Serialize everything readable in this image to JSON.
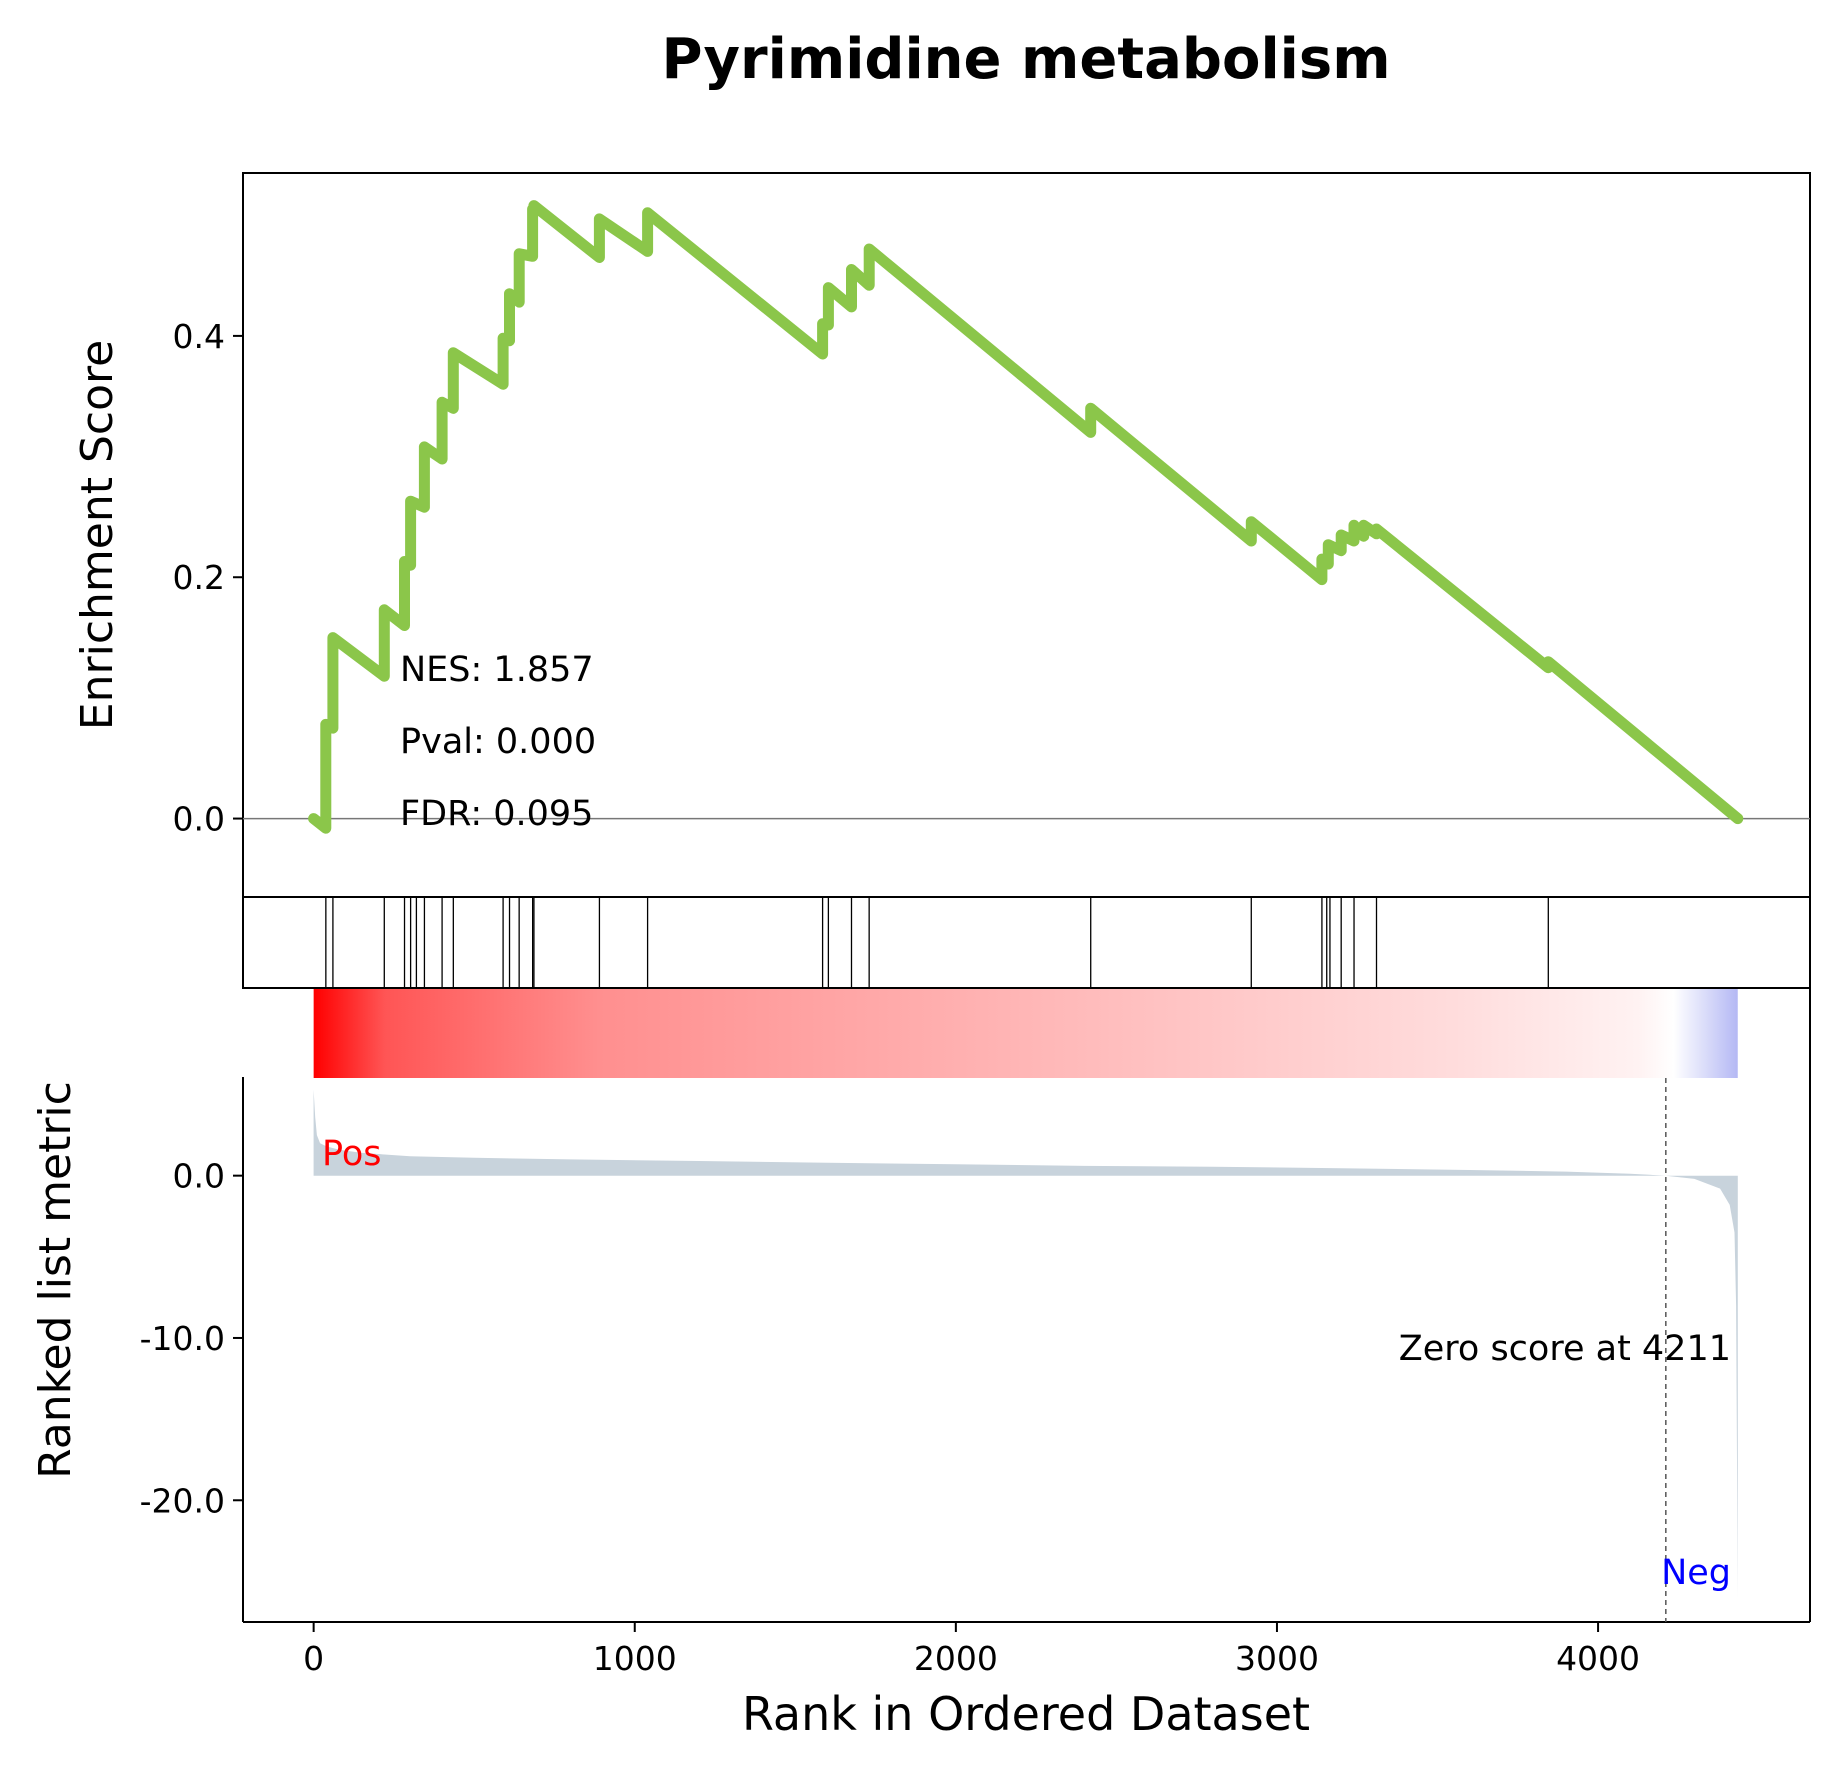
{
  "title": "Pyrimidine metabolism",
  "xlabel": "Rank in Ordered Dataset",
  "stats": {
    "nes": "NES: 1.857",
    "pval": "Pval: 0.000",
    "fdr": "FDR: 0.095"
  },
  "pos_label": "Pos",
  "neg_label": "Neg",
  "zero_score_label": "Zero score at 4211",
  "colors": {
    "es_line": "#8bc64a",
    "metric_fill": "#c8d3dc",
    "pos": "#ff0000",
    "neg": "#0000ff",
    "zero_line": "#777777"
  },
  "chart_data": [
    {
      "type": "line",
      "panel": "enrichment-score",
      "ylabel": "Enrichment Score",
      "xlim": [
        -220,
        4660
      ],
      "ylim": [
        -0.065,
        0.535
      ],
      "yticks": [
        0.0,
        0.2,
        0.4
      ],
      "ytick_labels": [
        "0.0",
        "0.2",
        "0.4"
      ],
      "series": [
        {
          "x": [
            0,
            38,
            38,
            60,
            60,
            220,
            220,
            283,
            283,
            302,
            302,
            345,
            345,
            400,
            400,
            435,
            435,
            590,
            590,
            610,
            610,
            640,
            640,
            682,
            682,
            686,
            686,
            890,
            890,
            1040,
            1040,
            1585,
            1585,
            1603,
            1603,
            1675,
            1675,
            1730,
            1730,
            2420,
            2420,
            2920,
            2920,
            3140,
            3140,
            3160,
            3160,
            3200,
            3200,
            3240,
            3240,
            3270,
            3270,
            3310,
            3310,
            3845,
            3845,
            4435
          ],
          "y": [
            0.0,
            -0.008,
            0.078,
            0.075,
            0.15,
            0.118,
            0.173,
            0.16,
            0.213,
            0.21,
            0.263,
            0.258,
            0.308,
            0.298,
            0.345,
            0.34,
            0.386,
            0.36,
            0.398,
            0.396,
            0.435,
            0.428,
            0.468,
            0.466,
            0.505,
            0.504,
            0.508,
            0.465,
            0.497,
            0.47,
            0.502,
            0.385,
            0.41,
            0.409,
            0.44,
            0.424,
            0.455,
            0.442,
            0.472,
            0.32,
            0.34,
            0.23,
            0.246,
            0.198,
            0.215,
            0.211,
            0.227,
            0.222,
            0.235,
            0.23,
            0.243,
            0.234,
            0.243,
            0.236,
            0.24,
            0.125,
            0.13,
            0.0
          ]
        }
      ]
    },
    {
      "type": "hits",
      "panel": "gene-hits",
      "x": [
        38,
        60,
        220,
        283,
        302,
        320,
        345,
        400,
        435,
        590,
        610,
        640,
        682,
        686,
        890,
        1040,
        1585,
        1603,
        1675,
        1730,
        2420,
        2920,
        3140,
        3155,
        3165,
        3200,
        3240,
        3310,
        3845
      ]
    },
    {
      "type": "heatmap",
      "panel": "rank-colorbar",
      "x_range": [
        0,
        4435
      ],
      "zero_at": 4211
    },
    {
      "type": "area",
      "panel": "ranked-list-metric",
      "ylabel": "Ranked list metric",
      "xlim": [
        -220,
        4660
      ],
      "ylim": [
        -27.5,
        11.5
      ],
      "yticks": [
        0.0,
        -10.0,
        -20.0
      ],
      "ytick_labels": [
        "0.0",
        "-10.0",
        "-20.0"
      ],
      "xticks": [
        0,
        1000,
        2000,
        3000,
        4000
      ],
      "xtick_labels": [
        "0",
        "1000",
        "2000",
        "3000",
        "4000"
      ],
      "zero_score_rank": 4211,
      "x": [
        0,
        5,
        10,
        20,
        40,
        80,
        150,
        300,
        500,
        800,
        1200,
        1600,
        2000,
        2400,
        2800,
        3200,
        3600,
        3900,
        4100,
        4211,
        4300,
        4380,
        4410,
        4425,
        4430,
        4435
      ],
      "y": [
        5.3,
        3.6,
        2.5,
        2.0,
        1.8,
        1.6,
        1.4,
        1.2,
        1.1,
        1.0,
        0.9,
        0.8,
        0.7,
        0.6,
        0.55,
        0.45,
        0.35,
        0.25,
        0.12,
        0.0,
        -0.2,
        -0.8,
        -1.8,
        -3.5,
        -8.0,
        -26.0
      ]
    }
  ]
}
